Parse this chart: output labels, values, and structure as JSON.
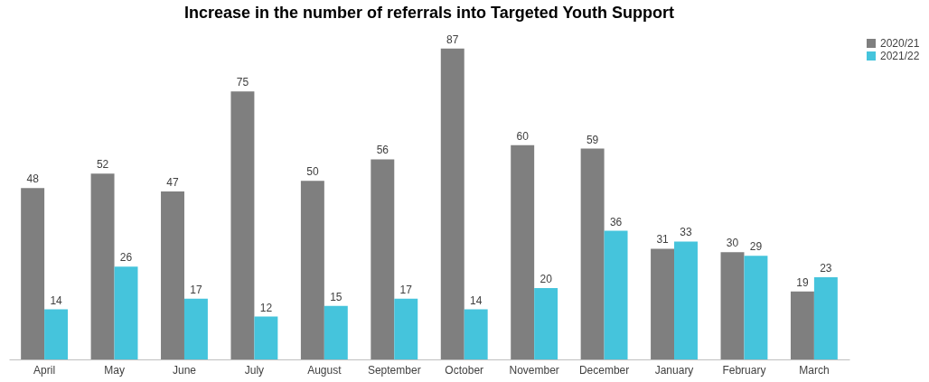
{
  "chart_data": {
    "type": "bar",
    "title": "Increase in the number of referrals into Targeted Youth Support",
    "categories": [
      "April",
      "May",
      "June",
      "July",
      "August",
      "September",
      "October",
      "November",
      "December",
      "January",
      "February",
      "March"
    ],
    "series": [
      {
        "name": "2020/21",
        "color": "#7f7f7f",
        "values": [
          48,
          52,
          47,
          75,
          50,
          56,
          87,
          60,
          59,
          31,
          30,
          19
        ]
      },
      {
        "name": "2021/22",
        "color": "#45c4dc",
        "values": [
          14,
          26,
          17,
          12,
          15,
          17,
          14,
          20,
          36,
          33,
          29,
          23
        ]
      }
    ],
    "data_labels": true,
    "grid": false,
    "legend": "right"
  }
}
